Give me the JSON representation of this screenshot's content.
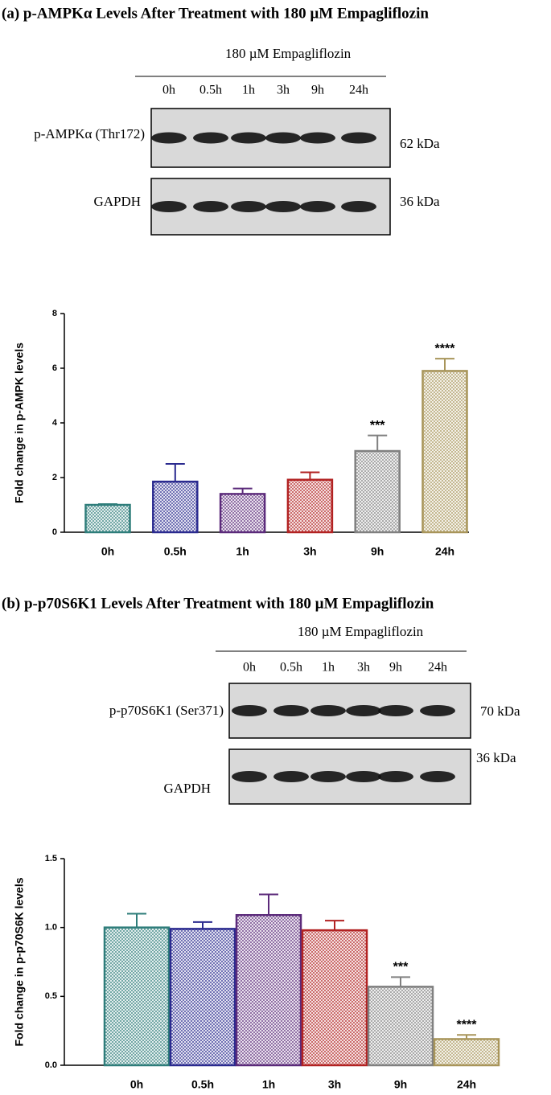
{
  "chart_data": [
    {
      "type": "bar",
      "title": "(a) p-AMPKα Levels After Treatment with 180 µM Empagliflozin",
      "y_label": "Fold change in p-AMPK levels",
      "categories": [
        "0h",
        "0.5h",
        "1h",
        "3h",
        "9h",
        "24h"
      ],
      "values": [
        1.0,
        1.85,
        1.4,
        1.92,
        2.97,
        5.9
      ],
      "errors": [
        0.03,
        0.65,
        0.2,
        0.27,
        0.57,
        0.45
      ],
      "significance": [
        null,
        null,
        null,
        null,
        "***",
        "****"
      ],
      "colors": [
        "#2e7d7a",
        "#2a2a8f",
        "#5b2a7a",
        "#b22222",
        "#808080",
        "#a8955a"
      ],
      "ylim": [
        0,
        8
      ],
      "yticks": [
        0,
        2,
        4,
        6,
        8
      ]
    },
    {
      "type": "bar",
      "title": "(b) p-p70S6K1 Levels After Treatment with 180 µM Empagliflozin",
      "y_label": "Fold change in p-p70S6K levels",
      "categories": [
        "0h",
        "0.5h",
        "1h",
        "3h",
        "9h",
        "24h"
      ],
      "values": [
        1.0,
        0.99,
        1.09,
        0.98,
        0.57,
        0.19
      ],
      "errors": [
        0.1,
        0.05,
        0.15,
        0.07,
        0.07,
        0.03
      ],
      "significance": [
        null,
        null,
        null,
        null,
        "***",
        "****"
      ],
      "colors": [
        "#2e7d7a",
        "#2a2a8f",
        "#5b2a7a",
        "#b22222",
        "#808080",
        "#a8955a"
      ],
      "ylim": [
        0,
        1.5
      ],
      "yticks": [
        {
          "value": 0,
          "label": "0.0"
        },
        {
          "value": 0.5,
          "label": "0.5"
        },
        {
          "value": 1,
          "label": "1.0"
        },
        {
          "value": 1.5,
          "label": "1.5"
        }
      ]
    }
  ],
  "blots": [
    {
      "treatment": "180 µM Empagliflozin",
      "lanes": [
        "0h",
        "0.5h",
        "1h",
        "3h",
        "9h",
        "24h"
      ],
      "rows": [
        {
          "label": "p-AMPKα (Thr172)",
          "size": "62 kDa"
        },
        {
          "label": "GAPDH",
          "size": "36 kDa"
        }
      ]
    },
    {
      "treatment": "180 µM Empagliflozin",
      "lanes": [
        "0h",
        "0.5h",
        "1h",
        "3h",
        "9h",
        "24h"
      ],
      "rows": [
        {
          "label": "p-p70S6K1 (Ser371)",
          "size": "70 kDa"
        },
        {
          "label": "GAPDH",
          "size": "36 kDa"
        }
      ]
    }
  ]
}
